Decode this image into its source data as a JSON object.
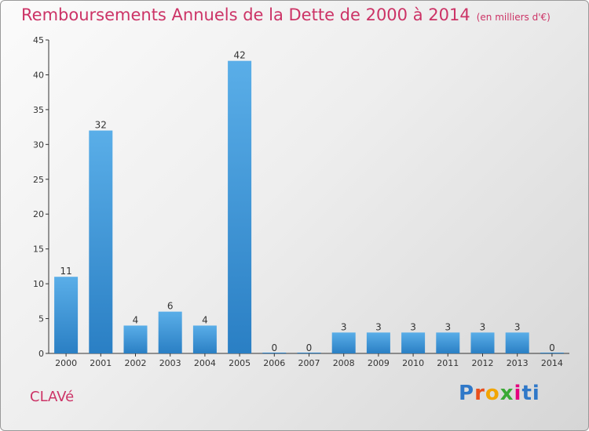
{
  "header": {
    "title": "Remboursements Annuels de la Dette de 2000 à 2014",
    "unit": "(en milliers d'€)"
  },
  "footer": {
    "commune": "CLAVé",
    "logo": "Proxiti"
  },
  "colors": {
    "title": "#cc3366",
    "bar_top": "#5aaee8",
    "bar_bottom": "#2a7fc4"
  },
  "chart_data": {
    "type": "bar",
    "title": "Remboursements Annuels de la Dette de 2000 à 2014",
    "xlabel": "",
    "ylabel": "",
    "categories": [
      "2000",
      "2001",
      "2002",
      "2003",
      "2004",
      "2005",
      "2006",
      "2007",
      "2008",
      "2009",
      "2010",
      "2011",
      "2012",
      "2013",
      "2014"
    ],
    "values": [
      11,
      32,
      4,
      6,
      4,
      42,
      0,
      0,
      3,
      3,
      3,
      3,
      3,
      3,
      0
    ],
    "ylim": [
      0,
      45
    ],
    "yticks": [
      0,
      5,
      10,
      15,
      20,
      25,
      30,
      35,
      40,
      45
    ],
    "grid": false,
    "legend": "none"
  }
}
